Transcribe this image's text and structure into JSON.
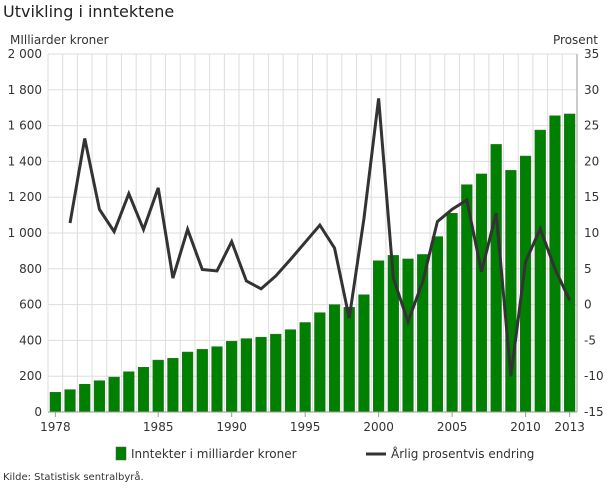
{
  "title": "Utvikling i inntektene",
  "source": "Kilde: Statistisk sentralbyrå.",
  "chart_data": {
    "type": "bar+line",
    "title": "Utvikling i inntektene",
    "ylabel_left": "MIlliarder kroner",
    "ylabel_right": "Prosent",
    "ylim_left": [
      0,
      2000
    ],
    "ylim_right": [
      -15,
      35
    ],
    "yticks_left": [
      "0",
      "200",
      "400",
      "600",
      "800",
      "1 000",
      "1 200",
      "1 400",
      "1 600",
      "1 800",
      "2 000"
    ],
    "yticks_right": [
      "-15",
      "-10",
      "-5",
      "0",
      "5",
      "10",
      "15",
      "20",
      "25",
      "30",
      "35"
    ],
    "xticks": [
      "1978",
      "1985",
      "1990",
      "1995",
      "2000",
      "2005",
      "2010",
      "2013"
    ],
    "grid": true,
    "legend_position": "bottom",
    "categories": [
      1978,
      1979,
      1980,
      1981,
      1982,
      1983,
      1984,
      1985,
      1986,
      1987,
      1988,
      1989,
      1990,
      1991,
      1992,
      1993,
      1994,
      1995,
      1996,
      1997,
      1998,
      1999,
      2000,
      2001,
      2002,
      2003,
      2004,
      2005,
      2006,
      2007,
      2008,
      2009,
      2010,
      2011,
      2012,
      2013
    ],
    "series": [
      {
        "name": "Inntekter i milliarder kroner",
        "type": "bar",
        "axis": "left",
        "color": "#008000",
        "values": [
          110,
          125,
          155,
          175,
          195,
          225,
          250,
          290,
          300,
          335,
          350,
          365,
          395,
          410,
          418,
          435,
          460,
          500,
          555,
          600,
          585,
          655,
          845,
          875,
          855,
          880,
          980,
          1110,
          1270,
          1330,
          1495,
          1350,
          1430,
          1575,
          1655,
          1665
        ]
      },
      {
        "name": "Årlig prosentvis endring",
        "type": "line",
        "axis": "right",
        "color": "#333333",
        "values": [
          null,
          11.4,
          23.2,
          13.3,
          10.2,
          15.5,
          10.5,
          16.3,
          3.7,
          10.5,
          4.9,
          4.7,
          8.8,
          3.3,
          2.2,
          4.0,
          6.3,
          8.7,
          11.1,
          7.9,
          -1.9,
          12.0,
          28.8,
          3.7,
          -2.4,
          3.2,
          11.6,
          13.3,
          14.6,
          4.6,
          12.8,
          -10.0,
          6.0,
          10.6,
          5.0,
          0.6
        ]
      }
    ]
  }
}
